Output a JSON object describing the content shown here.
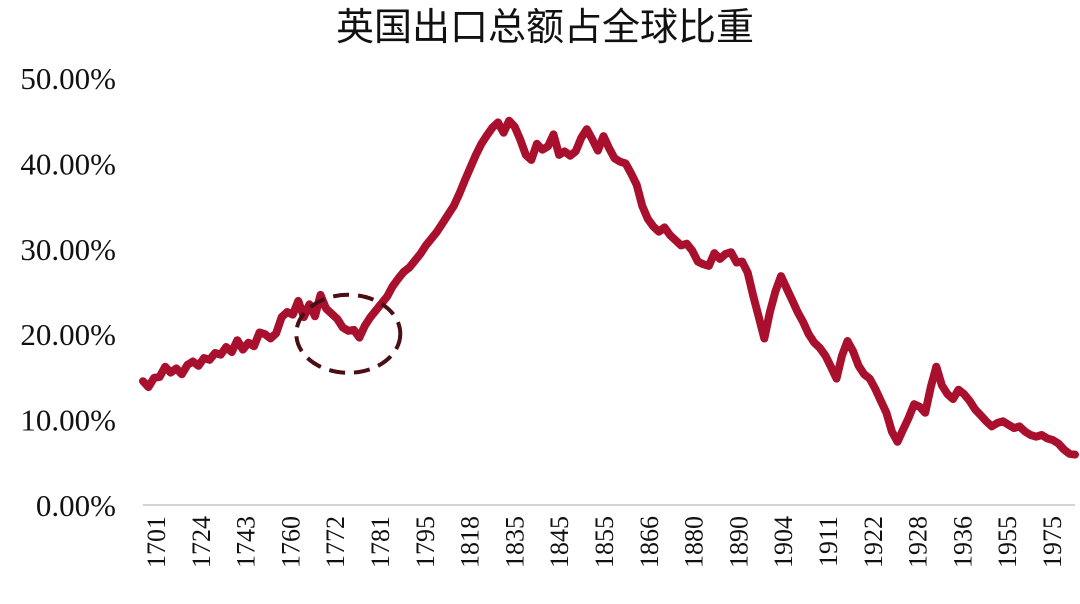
{
  "chart_data": {
    "type": "line",
    "title": "英国出口总额占全球比重",
    "xlabel": "",
    "ylabel": "",
    "ylim": [
      0,
      50
    ],
    "y_ticks": [
      0,
      10,
      20,
      30,
      40,
      50
    ],
    "y_tick_labels": [
      "0.00%",
      "10.00%",
      "20.00%",
      "30.00%",
      "40.00%",
      "50.00%"
    ],
    "x_tick_labels": [
      "1701",
      "1724",
      "1743",
      "1760",
      "1772",
      "1781",
      "1795",
      "1818",
      "1835",
      "1845",
      "1855",
      "1866",
      "1880",
      "1890",
      "1904",
      "1911",
      "1922",
      "1928",
      "1936",
      "1955",
      "1975"
    ],
    "grid": false,
    "legend": "none",
    "line_color": "#a8102e",
    "highlight_color": "#4a0e14",
    "highlight_index": 37,
    "series": [
      {
        "values": [
          14.5,
          13.8,
          14.9,
          15.0,
          16.2,
          15.5,
          16.0,
          15.3,
          16.4,
          16.8,
          16.3,
          17.2,
          17.0,
          17.8,
          17.6,
          18.5,
          17.9,
          19.3,
          18.2,
          19.0,
          18.6,
          20.2,
          20.0,
          19.5,
          20.1,
          22.0,
          22.6,
          22.3,
          23.9,
          22.0,
          23.5,
          22.1,
          24.6,
          23.0,
          22.4,
          21.8,
          20.8,
          20.4,
          20.5,
          19.6,
          21.0,
          22.0,
          22.8,
          23.6,
          24.4,
          25.6,
          26.5,
          27.3,
          27.8,
          28.6,
          29.4,
          30.4,
          31.2,
          32.0,
          33.0,
          34.0,
          35.0,
          36.4,
          38.0,
          39.5,
          41.0,
          42.3,
          43.3,
          44.2,
          44.8,
          43.6,
          45.0,
          44.3,
          42.8,
          41.0,
          40.4,
          42.3,
          41.6,
          42.0,
          43.4,
          41.0,
          41.4,
          40.9,
          41.4,
          43.0,
          44.0,
          42.8,
          41.5,
          43.2,
          41.8,
          40.6,
          40.2,
          40.0,
          38.8,
          37.5,
          35.0,
          33.5,
          32.6,
          32.0,
          32.5,
          31.6,
          31.0,
          30.4,
          30.6,
          29.8,
          28.5,
          28.2,
          28.0,
          29.5,
          28.8,
          29.4,
          29.6,
          28.4,
          28.5,
          27.2,
          24.5,
          22.0,
          19.5,
          22.6,
          25.0,
          26.8,
          25.4,
          24.0,
          22.6,
          21.4,
          20.0,
          19.0,
          18.4,
          17.5,
          16.2,
          14.8,
          17.5,
          19.2,
          18.0,
          16.3,
          15.3,
          14.8,
          13.6,
          12.2,
          10.8,
          8.6,
          7.4,
          8.8,
          10.2,
          11.8,
          11.5,
          10.8,
          13.8,
          16.2,
          14.0,
          13.0,
          12.4,
          13.5,
          13.0,
          12.2,
          11.2,
          10.5,
          9.8,
          9.2,
          9.6,
          9.8,
          9.4,
          9.0,
          9.2,
          8.6,
          8.2,
          8.0,
          8.2,
          7.8,
          7.6,
          7.2,
          6.5,
          6.0,
          5.9
        ]
      }
    ]
  }
}
